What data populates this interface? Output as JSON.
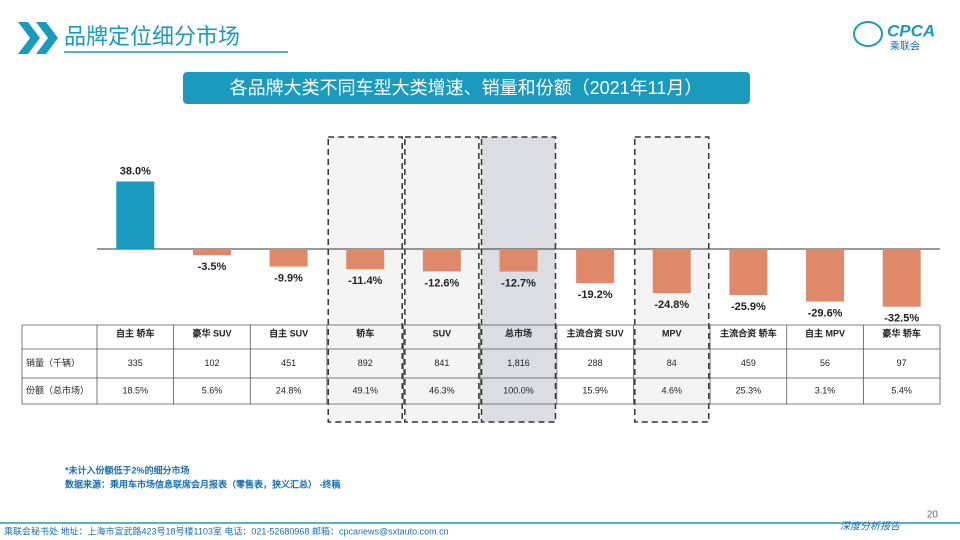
{
  "header": {
    "title": "品牌定位细分市场",
    "logo_text": "CPCA",
    "logo_subtext": "乘联会"
  },
  "chart_data": {
    "type": "bar",
    "title": "各品牌大类不同车型大类增速、销量和份额（2021年11月）",
    "categories": [
      "自主 轿车",
      "豪华 SUV",
      "自主 SUV",
      "轿车",
      "SUV",
      "总市场",
      "主流合资 SUV",
      "MPV",
      "主流合资 轿车",
      "自主 MPV",
      "豪华 轿车"
    ],
    "values": [
      38.0,
      -3.5,
      -9.9,
      -11.4,
      -12.6,
      -12.7,
      -19.2,
      -24.8,
      -25.9,
      -29.6,
      -32.5
    ],
    "value_labels": [
      "38.0%",
      "-3.5%",
      "-9.9%",
      "-11.4%",
      "-12.6%",
      "-12.7%",
      "-19.2%",
      "-24.8%",
      "-25.9%",
      "-29.6%",
      "-32.5%"
    ],
    "colors": [
      "#1a9bbd",
      "#e0896a",
      "#e0896a",
      "#e0896a",
      "#e0896a",
      "#e0896a",
      "#e0896a",
      "#e0896a",
      "#e0896a",
      "#e0896a",
      "#e0896a"
    ]
  },
  "table": {
    "rows": [
      {
        "label": "销量（千辆）",
        "cells": [
          "335",
          "102",
          "451",
          "892",
          "841",
          "1,816",
          "288",
          "84",
          "459",
          "56",
          "97"
        ]
      },
      {
        "label": "份额（总市场）",
        "cells": [
          "18.5%",
          "5.6%",
          "24.8%",
          "49.1%",
          "46.3%",
          "100.0%",
          "15.9%",
          "4.6%",
          "25.3%",
          "3.1%",
          "5.4%"
        ]
      }
    ]
  },
  "notes": [
    "*未计入份额低于2%的细分市场",
    "数据来源：乘用车市场信息联席会月报表（零售表，狭义汇总） -终稿"
  ],
  "footer": {
    "text": "乘联会秘书处   地址：上海市宣武路423号18号楼1103室   电话：021-52680968   邮箱：cpcanews@sxtauto.com.cn",
    "page": "20",
    "report": "深度分析报告"
  }
}
